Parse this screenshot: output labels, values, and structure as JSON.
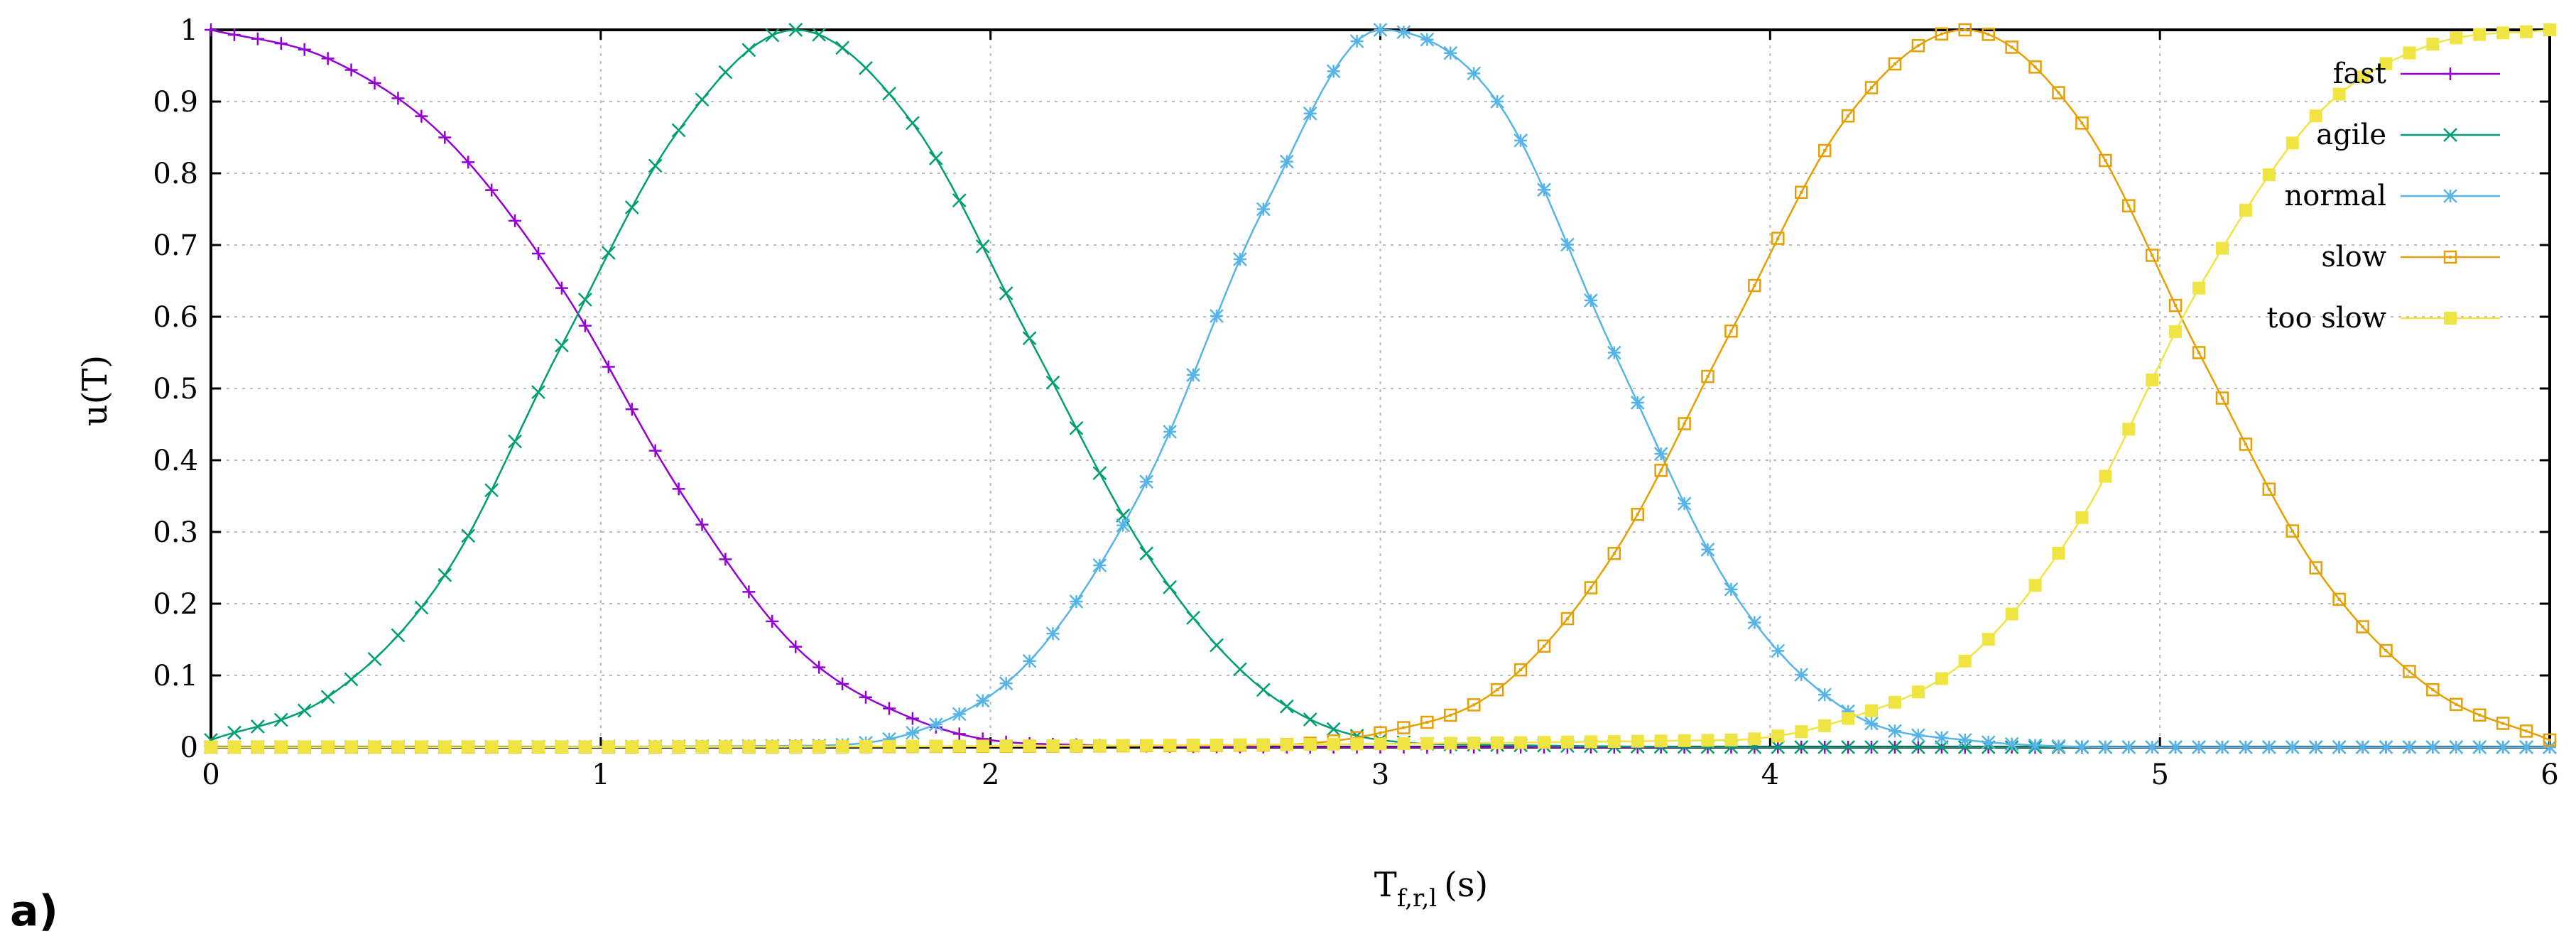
{
  "panel_label": "a)",
  "chart_data": {
    "type": "line",
    "title": "",
    "xlabel": "T",
    "xlabel_subscript": "f,r,l",
    "xlabel_unit": "(s)",
    "ylabel": "u(T)",
    "xlim": [
      0,
      6
    ],
    "ylim": [
      0,
      1
    ],
    "x_ticks": [
      "0",
      "1",
      "2",
      "3",
      "4",
      "5",
      "6"
    ],
    "y_ticks": [
      "0",
      "0.1",
      "0.2",
      "0.3",
      "0.4",
      "0.5",
      "0.6",
      "0.7",
      "0.8",
      "0.9",
      "1"
    ],
    "grid": true,
    "legend_position": "top-right",
    "series": [
      {
        "name": "fast",
        "color": "#9400d3",
        "marker": "plus",
        "x": [
          0.0,
          0.3,
          0.6,
          0.9,
          1.2,
          1.5,
          1.8,
          2.1,
          3.0,
          4.0,
          5.0,
          6.0
        ],
        "values": [
          1.0,
          0.96,
          0.85,
          0.64,
          0.36,
          0.14,
          0.04,
          0.005,
          0.0,
          0.0,
          0.0,
          0.0
        ]
      },
      {
        "name": "agile",
        "color": "#009e73",
        "marker": "cross",
        "x": [
          0.0,
          0.3,
          0.6,
          0.9,
          1.2,
          1.5,
          1.8,
          2.1,
          2.4,
          2.7,
          3.0,
          3.3,
          4.0,
          5.0,
          6.0
        ],
        "values": [
          0.01,
          0.07,
          0.24,
          0.56,
          0.86,
          1.0,
          0.87,
          0.57,
          0.27,
          0.08,
          0.01,
          0.003,
          0.0,
          0.0,
          0.0
        ]
      },
      {
        "name": "normal",
        "color": "#56b4e9",
        "marker": "star",
        "x": [
          0.0,
          1.5,
          1.8,
          2.1,
          2.4,
          2.7,
          3.0,
          3.3,
          3.6,
          3.9,
          4.2,
          4.5,
          5.0,
          6.0
        ],
        "values": [
          0.0,
          0.002,
          0.02,
          0.12,
          0.37,
          0.75,
          1.0,
          0.9,
          0.55,
          0.22,
          0.05,
          0.01,
          0.0,
          0.0
        ]
      },
      {
        "name": "slow",
        "color": "#e69f00",
        "marker": "open-square",
        "x": [
          0.0,
          2.7,
          3.0,
          3.3,
          3.6,
          3.9,
          4.2,
          4.5,
          4.8,
          5.1,
          5.4,
          5.7,
          6.0
        ],
        "values": [
          0.0,
          0.003,
          0.02,
          0.08,
          0.27,
          0.58,
          0.88,
          1.0,
          0.87,
          0.55,
          0.25,
          0.08,
          0.01
        ]
      },
      {
        "name": "too slow",
        "color": "#f0e442",
        "marker": "filled-square",
        "x": [
          0.0,
          3.9,
          4.2,
          4.5,
          4.8,
          5.1,
          5.4,
          5.7,
          6.0
        ],
        "values": [
          0.0,
          0.01,
          0.04,
          0.12,
          0.32,
          0.64,
          0.88,
          0.98,
          1.0
        ]
      }
    ]
  }
}
